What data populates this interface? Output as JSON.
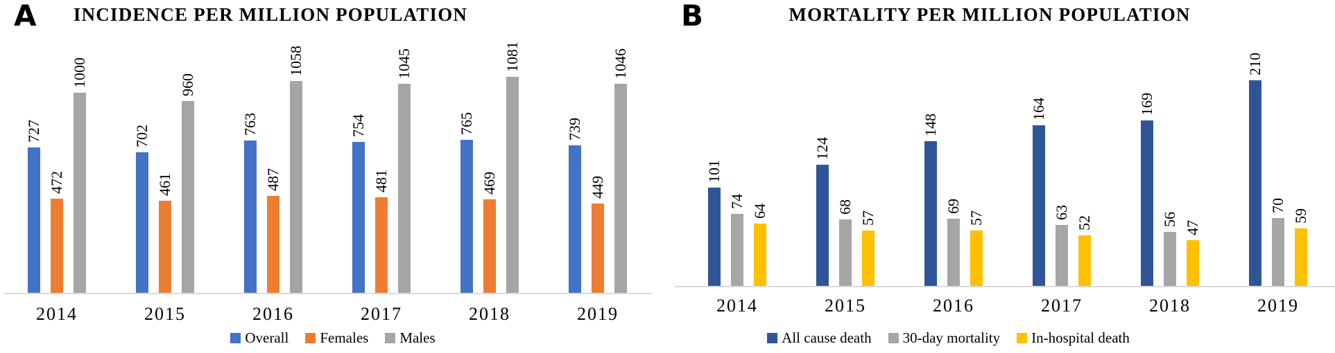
{
  "figure": {
    "background": "#ffffff",
    "axis_color": "#d9d9d9",
    "text_color": "#000000"
  },
  "panels": [
    {
      "label": "A",
      "title": "INCIDENCE PER MILLION POPULATION",
      "chart_data": {
        "type": "bar",
        "title": "INCIDENCE PER MILLION POPULATION",
        "categories": [
          "2014",
          "2015",
          "2016",
          "2017",
          "2018",
          "2019"
        ],
        "series": [
          {
            "name": "Overall",
            "color": "#4472C4",
            "values": [
              727,
              702,
              763,
              754,
              765,
              739
            ]
          },
          {
            "name": "Females",
            "color": "#ED7D31",
            "values": [
              472,
              461,
              487,
              481,
              469,
              449
            ]
          },
          {
            "name": "Males",
            "color": "#A5A5A5",
            "values": [
              1000,
              960,
              1058,
              1045,
              1081,
              1046
            ]
          }
        ],
        "xlabel": "",
        "ylabel": "",
        "ylim": [
          0,
          1150
        ],
        "grid": false,
        "y_axis_visible": false,
        "legend_position": "bottom",
        "value_labels": "rotated 90 degrees above each bar"
      }
    },
    {
      "label": "B",
      "title": "MORTALITY PER MILLION POPULATION",
      "chart_data": {
        "type": "bar",
        "title": "MORTALITY PER MILLION POPULATION",
        "categories": [
          "2014",
          "2015",
          "2016",
          "2017",
          "2018",
          "2019"
        ],
        "series": [
          {
            "name": "All cause death",
            "color": "#2F5597",
            "values": [
              101,
              124,
              148,
              164,
              169,
              210
            ]
          },
          {
            "name": "30-day mortality",
            "color": "#A6A6A6",
            "values": [
              74,
              68,
              69,
              63,
              56,
              70
            ]
          },
          {
            "name": "In-hospital death",
            "color": "#FFC000",
            "values": [
              64,
              57,
              57,
              52,
              47,
              59
            ]
          }
        ],
        "xlabel": "",
        "ylabel": "",
        "ylim": [
          0,
          250
        ],
        "grid": false,
        "y_axis_visible": false,
        "legend_position": "bottom",
        "value_labels": "rotated 90 degrees above each bar"
      }
    }
  ]
}
